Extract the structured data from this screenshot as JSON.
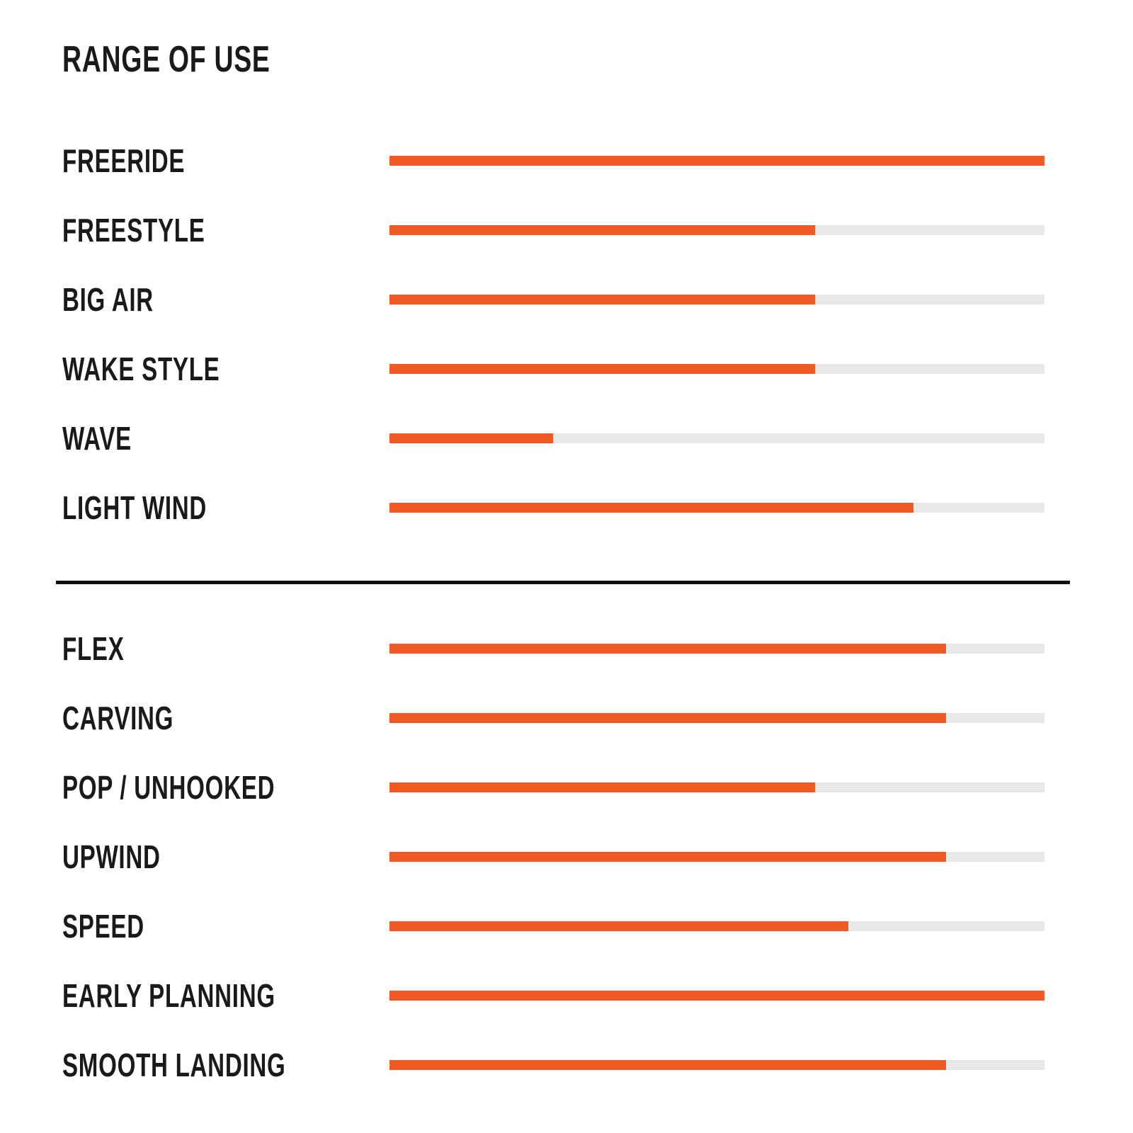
{
  "page": {
    "background": "#ffffff",
    "title": "RANGE OF USE"
  },
  "chart_data": {
    "type": "bar",
    "orientation": "horizontal",
    "title": "RANGE OF USE",
    "value_unit": "percent of full bar (no numeric labels shown)",
    "xlim": [
      0,
      100
    ],
    "grid": false,
    "legend": false,
    "colors": {
      "bar_fill": "#f15a22",
      "bar_track": "#e8e8e8",
      "divider": "#111111",
      "text": "#1a1a1a"
    },
    "sections": [
      {
        "rows": [
          {
            "label": "FREERIDE",
            "value": 100
          },
          {
            "label": "FREESTYLE",
            "value": 65
          },
          {
            "label": "BIG AIR",
            "value": 65
          },
          {
            "label": "WAKE STYLE",
            "value": 65
          },
          {
            "label": "WAVE",
            "value": 25
          },
          {
            "label": "LIGHT WIND",
            "value": 80
          }
        ]
      },
      {
        "rows": [
          {
            "label": "FLEX",
            "value": 85
          },
          {
            "label": "CARVING",
            "value": 85
          },
          {
            "label": "POP / UNHOOKED",
            "value": 65
          },
          {
            "label": "UPWIND",
            "value": 85
          },
          {
            "label": "SPEED",
            "value": 70
          },
          {
            "label": "EARLY PLANNING",
            "value": 100
          },
          {
            "label": "SMOOTH LANDING",
            "value": 85
          }
        ]
      }
    ]
  }
}
